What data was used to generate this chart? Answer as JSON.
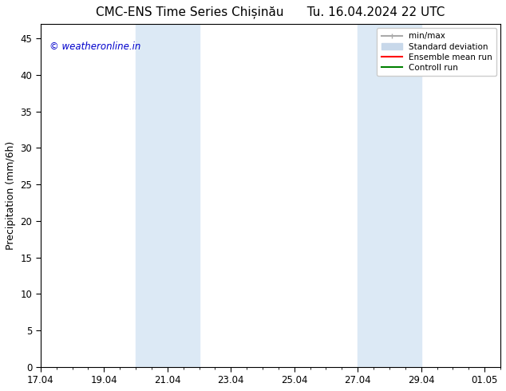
{
  "title": "CMC-ENS Time Series Chișinău      Tu. 16.04.2024 22 UTC",
  "ylabel": "Precipitation (mm/6h)",
  "xlabel": "",
  "xlim_start": "17.04",
  "xlim_end": "01.05",
  "ylim": [
    0,
    47
  ],
  "yticks": [
    0,
    5,
    10,
    15,
    20,
    25,
    30,
    35,
    40,
    45
  ],
  "xtick_labels": [
    "17.04",
    "19.04",
    "21.04",
    "23.04",
    "25.04",
    "27.04",
    "29.04",
    "01.05"
  ],
  "xtick_values": [
    0,
    2,
    4,
    6,
    8,
    10,
    12,
    14
  ],
  "background_color": "#ffffff",
  "plot_bg_color": "#ffffff",
  "shaded_bands": [
    {
      "x_start": 3.5,
      "x_end": 4.5,
      "color": "#dce9f7"
    },
    {
      "x_start": 4.5,
      "x_end": 5.0,
      "color": "#dce9f7"
    },
    {
      "x_start": 10.0,
      "x_end": 11.0,
      "color": "#dce9f7"
    },
    {
      "x_start": 11.0,
      "x_end": 12.0,
      "color": "#dce9f7"
    }
  ],
  "watermark_text": "© weatheronline.in",
  "watermark_color": "#0000cc",
  "legend_entries": [
    {
      "label": "min/max",
      "color": "#aaaaaa",
      "lw": 1.5,
      "style": "|-|"
    },
    {
      "label": "Standard deviation",
      "color": "#ccddee",
      "lw": 6,
      "style": "solid"
    },
    {
      "label": "Ensemble mean run",
      "color": "#ff0000",
      "lw": 1.5,
      "style": "solid"
    },
    {
      "label": "Controll run",
      "color": "#008000",
      "lw": 1.5,
      "style": "solid"
    }
  ],
  "tick_color": "#000000",
  "spine_color": "#000000",
  "grid": false,
  "title_fontsize": 11,
  "axis_label_fontsize": 9,
  "tick_fontsize": 8.5
}
